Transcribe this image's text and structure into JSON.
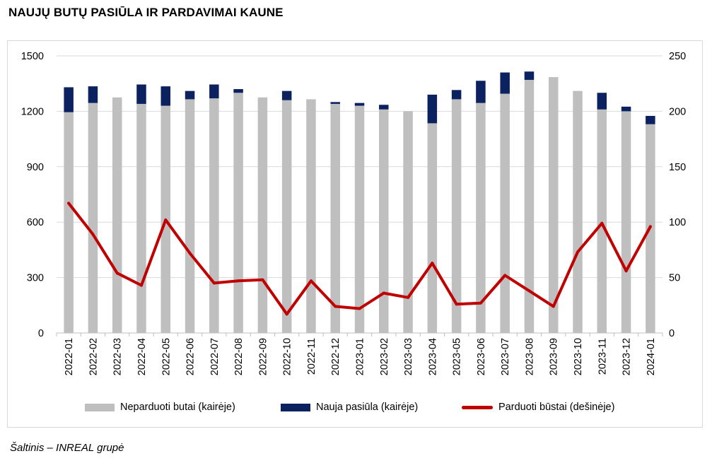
{
  "title": "NAUJŲ BUTŲ PASIŪLA IR PARDAVIMAI KAUNE",
  "source": "Šaltinis – INREAL grupė",
  "colors": {
    "unsold": "#bfbfbf",
    "new_supply": "#0b2160",
    "sold": "#c00000",
    "gridline": "#d9d9d9",
    "axis": "#bfbfbf"
  },
  "legend": {
    "unsold_label": "Neparduoti butai (kairėje)",
    "new_label": "Nauja pasiūla (kairėje)",
    "sold_label": "Parduoti būstai (dešinėje)"
  },
  "chart_data": {
    "type": "bar",
    "stacked": true,
    "title": "",
    "categories": [
      "2022-01",
      "2022-02",
      "2022-03",
      "2022-04",
      "2022-05",
      "2022-06",
      "2022-07",
      "2022-08",
      "2022-09",
      "2022-10",
      "2022-11",
      "2022-12",
      "2023-01",
      "2023-02",
      "2023-03",
      "2023-04",
      "2023-05",
      "2023-06",
      "2023-07",
      "2023-08",
      "2023-09",
      "2023-10",
      "2023-11",
      "2023-12",
      "2024-01"
    ],
    "series": [
      {
        "name": "Neparduoti butai (kairėje)",
        "axis": "left",
        "type": "bar",
        "values": [
          1195,
          1245,
          1275,
          1240,
          1230,
          1265,
          1270,
          1300,
          1275,
          1260,
          1265,
          1240,
          1230,
          1210,
          1200,
          1135,
          1265,
          1245,
          1295,
          1370,
          1385,
          1310,
          1210,
          1200,
          1130
        ]
      },
      {
        "name": "Nauja pasiūla (kairėje)",
        "axis": "left",
        "type": "bar",
        "values": [
          135,
          90,
          0,
          105,
          105,
          45,
          75,
          20,
          0,
          50,
          0,
          10,
          15,
          25,
          0,
          155,
          50,
          120,
          115,
          45,
          0,
          0,
          90,
          25,
          45
        ]
      },
      {
        "name": "Parduoti būstai (dešinėje)",
        "axis": "right",
        "type": "line",
        "values": [
          117,
          89,
          54,
          43,
          102,
          72,
          45,
          47,
          48,
          17,
          47,
          24,
          22,
          36,
          32,
          63,
          26,
          27,
          52,
          38,
          24,
          73,
          99,
          56,
          96
        ]
      }
    ],
    "y_left": {
      "min": 0,
      "max": 1500,
      "ticks": [
        0,
        300,
        600,
        900,
        1200,
        1500
      ]
    },
    "y_right": {
      "min": 0,
      "max": 250,
      "ticks": [
        0,
        50,
        100,
        150,
        200,
        250
      ]
    },
    "grid": true,
    "legend_position": "bottom"
  }
}
